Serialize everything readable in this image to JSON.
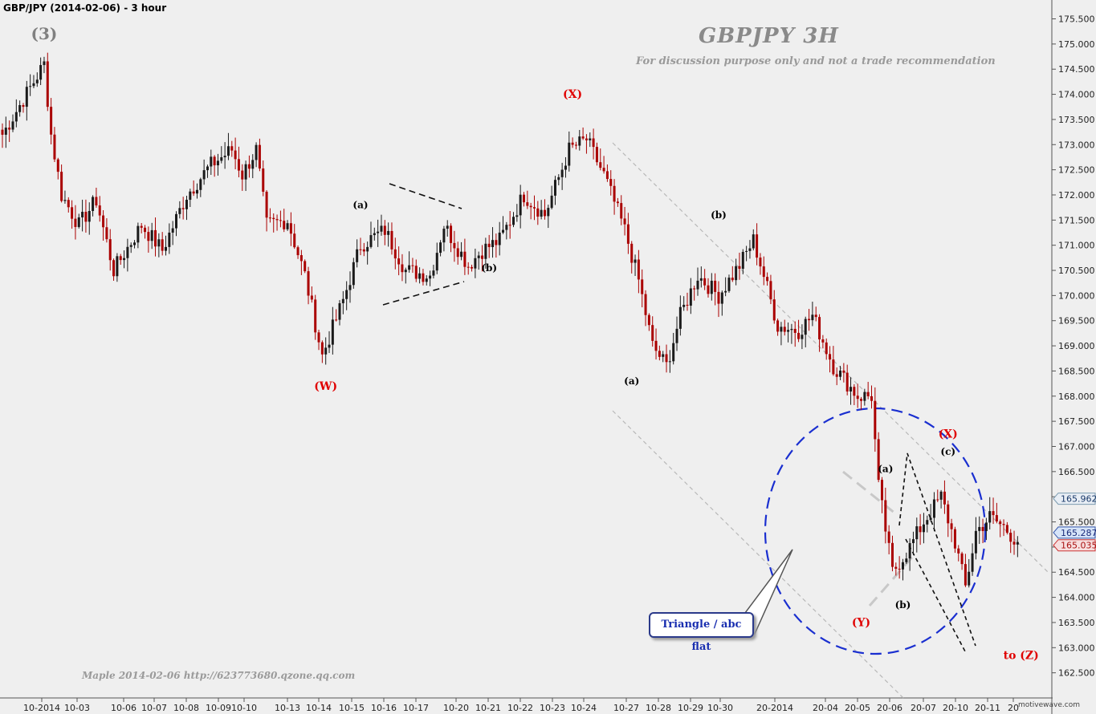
{
  "header": {
    "title": "GBP/JPY (2014-02-06) - 3 hour"
  },
  "watermark": {
    "title": "GBPJPY  3H",
    "subtitle": "For discussion purpose only and not a trade recommendation"
  },
  "footer": {
    "author_line": "Maple   2014-02-06   http://623773680.qzone.qq.com",
    "brand": "motivewave.com"
  },
  "callout": {
    "text": "Triangle / abc flat"
  },
  "colors": {
    "background": "#efefef",
    "up": "#1a1a1a",
    "down": "#aa0000",
    "circle": "#1a2fd0",
    "label_red": "#e00000",
    "label_black": "#000000",
    "label_gray": "#808080"
  },
  "chart_data": {
    "type": "candlestick",
    "title": "GBP/JPY (2014-02-06) - 3 hour",
    "ylim": [
      162.2,
      175.75
    ],
    "y_axis_position": "right",
    "y_ticks": [
      "162.500",
      "163.000",
      "163.500",
      "164.000",
      "164.500",
      "165.000",
      "165.500",
      "166.000",
      "166.500",
      "167.000",
      "167.500",
      "168.000",
      "168.500",
      "169.000",
      "169.500",
      "170.000",
      "170.500",
      "171.000",
      "171.500",
      "172.000",
      "172.500",
      "173.000",
      "173.500",
      "174.000",
      "174.500",
      "175.000",
      "175.500"
    ],
    "x_tick_labels": [
      "10-2014",
      "10-03",
      "10-06",
      "10-07",
      "10-08",
      "10-09",
      "10-10",
      "10-13",
      "10-14",
      "10-15",
      "10-16",
      "10-17",
      "10-20",
      "10-21",
      "10-22",
      "10-23",
      "10-24",
      "10-27",
      "10-28",
      "10-29",
      "10-30",
      "20-2014",
      "20-04",
      "20-05",
      "20-06",
      "20-07",
      "20-10",
      "20-11",
      "20"
    ],
    "price_tags": [
      {
        "value": "165.962",
        "style": "gray"
      },
      {
        "value": "165.287",
        "style": "blue"
      },
      {
        "value": "165.035",
        "style": "red"
      }
    ],
    "anchors": [
      [
        0,
        173.2
      ],
      [
        12,
        174.6
      ],
      [
        14,
        173.2
      ],
      [
        17,
        172.0
      ],
      [
        22,
        171.4
      ],
      [
        27,
        171.9
      ],
      [
        32,
        170.5
      ],
      [
        40,
        171.4
      ],
      [
        46,
        170.9
      ],
      [
        53,
        172.0
      ],
      [
        60,
        172.6
      ],
      [
        66,
        172.9
      ],
      [
        69,
        172.4
      ],
      [
        73,
        172.9
      ],
      [
        76,
        171.4
      ],
      [
        82,
        171.5
      ],
      [
        87,
        170.4
      ],
      [
        92,
        168.8
      ],
      [
        98,
        169.9
      ],
      [
        103,
        171.0
      ],
      [
        110,
        171.3
      ],
      [
        116,
        170.5
      ],
      [
        123,
        170.4
      ],
      [
        127,
        171.4
      ],
      [
        134,
        170.6
      ],
      [
        138,
        170.9
      ],
      [
        143,
        171.1
      ],
      [
        150,
        172.0
      ],
      [
        156,
        171.6
      ],
      [
        163,
        172.9
      ],
      [
        168,
        173.1
      ],
      [
        173,
        172.4
      ],
      [
        179,
        171.3
      ],
      [
        183,
        170.3
      ],
      [
        187,
        169.0
      ],
      [
        191,
        168.6
      ],
      [
        195,
        169.6
      ],
      [
        200,
        170.4
      ],
      [
        206,
        170.0
      ],
      [
        212,
        170.6
      ],
      [
        216,
        171.1
      ],
      [
        219,
        170.4
      ],
      [
        223,
        169.4
      ],
      [
        229,
        169.3
      ],
      [
        233,
        169.6
      ],
      [
        239,
        168.6
      ],
      [
        246,
        168.0
      ],
      [
        250,
        168.0
      ],
      [
        252,
        166.2
      ],
      [
        256,
        164.5
      ],
      [
        261,
        165.0
      ],
      [
        265,
        165.5
      ],
      [
        270,
        166.0
      ],
      [
        274,
        165.1
      ],
      [
        277,
        164.2
      ],
      [
        280,
        165.3
      ],
      [
        284,
        165.6
      ],
      [
        288,
        165.4
      ],
      [
        292,
        165.1
      ]
    ],
    "wave_labels": [
      {
        "text": "(3)",
        "x_index": 12,
        "price": 175.2,
        "color": "gray"
      },
      {
        "text": "(W)",
        "x_index": 93,
        "price": 168.2,
        "color": "red"
      },
      {
        "text": "(a)",
        "x_index": 103,
        "price": 171.8,
        "color": "black"
      },
      {
        "text": "(b)",
        "x_index": 140,
        "price": 170.55,
        "color": "black"
      },
      {
        "text": "(X)",
        "x_index": 164,
        "price": 174.0,
        "color": "red"
      },
      {
        "text": "(a)",
        "x_index": 181,
        "price": 168.3,
        "color": "black"
      },
      {
        "text": "(b)",
        "x_index": 206,
        "price": 171.6,
        "color": "black"
      },
      {
        "text": "(a)",
        "x_index": 254,
        "price": 166.55,
        "color": "black"
      },
      {
        "text": "(b)",
        "x_index": 259,
        "price": 163.85,
        "color": "black"
      },
      {
        "text": "(Y)",
        "x_index": 247,
        "price": 163.5,
        "color": "red"
      },
      {
        "text": "(X)",
        "x_index": 272,
        "price": 167.25,
        "color": "red"
      },
      {
        "text": "(c)",
        "x_index": 272,
        "price": 166.9,
        "color": "black"
      },
      {
        "text": "to (Z)",
        "x_index": 293,
        "price": 162.85,
        "color": "red"
      }
    ]
  }
}
